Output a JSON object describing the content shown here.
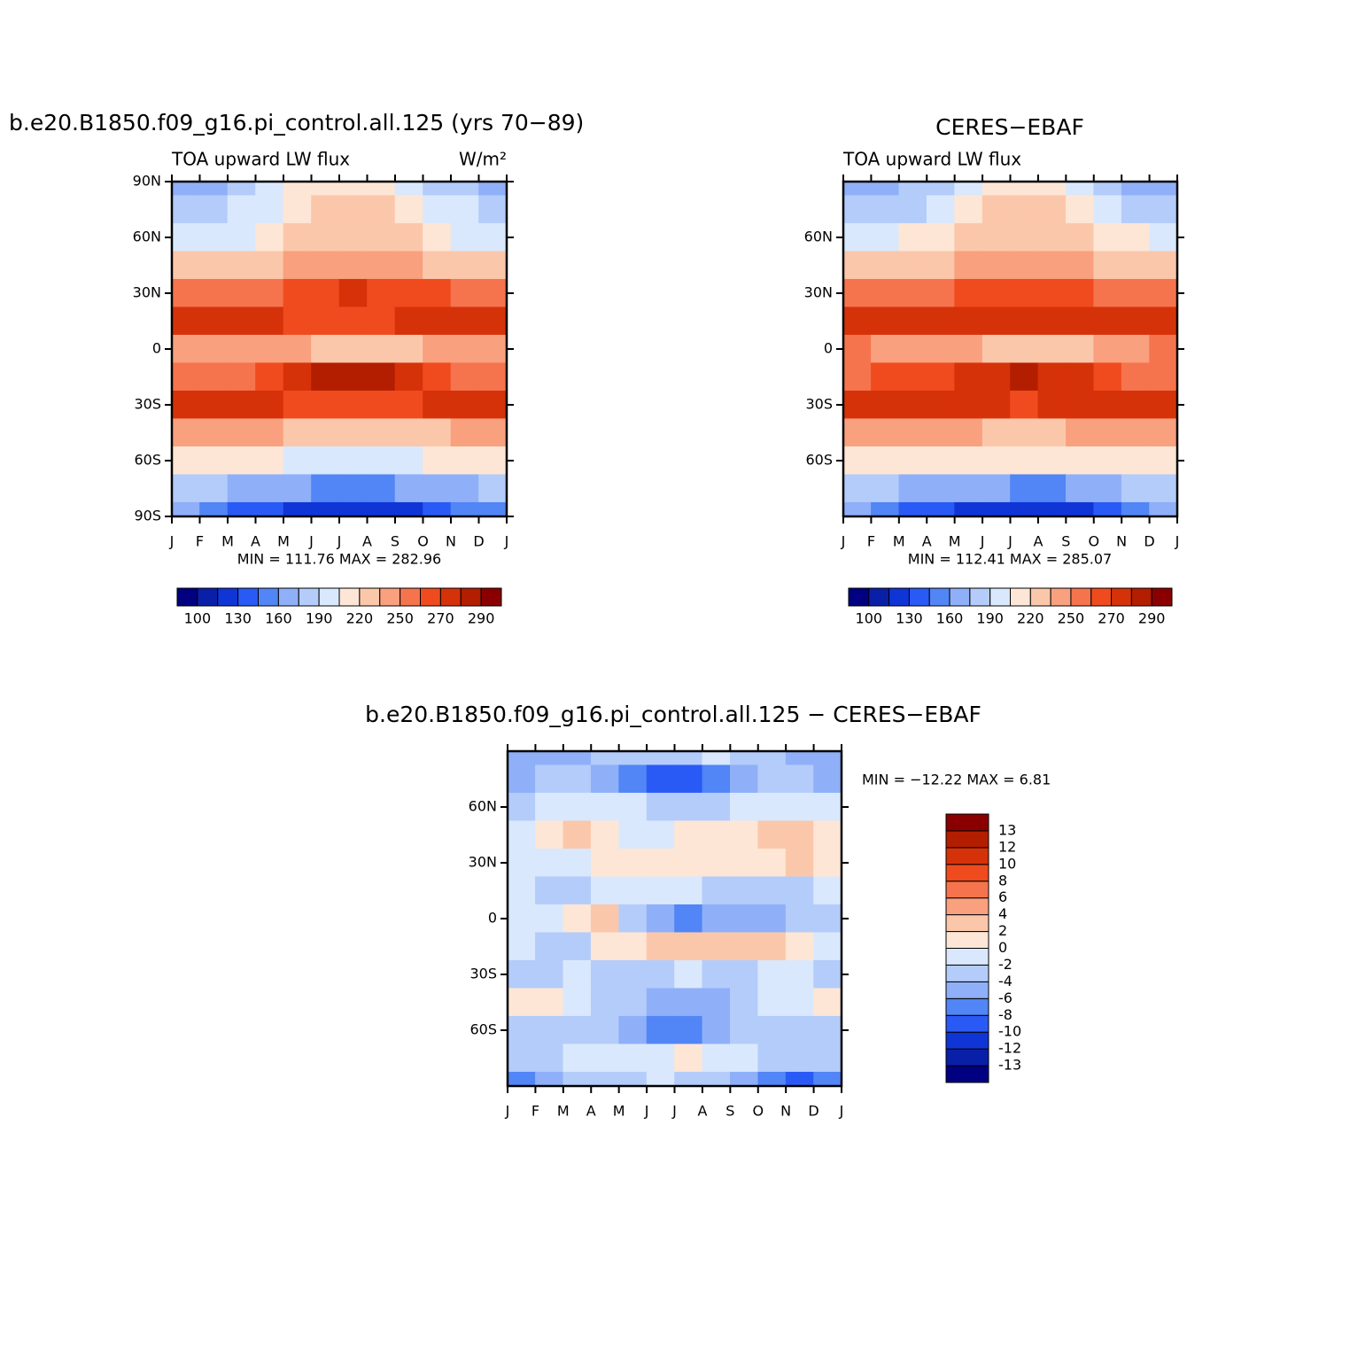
{
  "chart_data": [
    {
      "type": "contour",
      "title": "b.e20.B1850.f09_g16.pi_control.all.125 (yrs 70−89)",
      "subtitle_left": "TOA upward LW flux",
      "subtitle_right": "W/m²",
      "stats": "MIN = 111.76 MAX = 282.96",
      "x": [
        0.5,
        1.5,
        2.5,
        3.5,
        4.5,
        5.5,
        6.5,
        7.5,
        8.5,
        9.5,
        10.5,
        11.5
      ],
      "y": [
        90,
        75,
        60,
        45,
        30,
        15,
        0,
        -15,
        -30,
        -45,
        -60,
        -75,
        -90
      ],
      "values": [
        [
          170,
          172,
          178,
          190,
          205,
          215,
          218,
          212,
          200,
          188,
          175,
          170
        ],
        [
          185,
          186,
          190,
          200,
          212,
          222,
          225,
          220,
          210,
          198,
          190,
          186
        ],
        [
          200,
          200,
          202,
          210,
          220,
          228,
          230,
          228,
          220,
          210,
          204,
          200
        ],
        [
          222,
          222,
          224,
          230,
          238,
          244,
          246,
          244,
          238,
          232,
          226,
          222
        ],
        [
          252,
          252,
          254,
          258,
          264,
          268,
          270,
          268,
          264,
          260,
          256,
          252
        ],
        [
          272,
          272,
          270,
          270,
          268,
          268,
          268,
          268,
          270,
          272,
          274,
          272
        ],
        [
          248,
          246,
          242,
          242,
          238,
          222,
          220,
          222,
          228,
          238,
          244,
          248
        ],
        [
          255,
          258,
          258,
          262,
          272,
          280,
          282,
          280,
          272,
          264,
          258,
          256
        ],
        [
          272,
          272,
          272,
          270,
          268,
          268,
          268,
          268,
          268,
          270,
          272,
          272
        ],
        [
          240,
          240,
          238,
          236,
          232,
          230,
          230,
          230,
          232,
          234,
          238,
          240
        ],
        [
          215,
          214,
          212,
          208,
          204,
          202,
          202,
          202,
          204,
          208,
          212,
          215
        ],
        [
          180,
          176,
          170,
          165,
          160,
          158,
          158,
          158,
          160,
          166,
          172,
          178
        ],
        [
          160,
          150,
          140,
          130,
          125,
          120,
          120,
          120,
          125,
          135,
          145,
          155
        ]
      ],
      "xlim": [
        0,
        12
      ],
      "ylim": [
        -90,
        90
      ],
      "xticks": [
        {
          "value": 0,
          "label": "J"
        },
        {
          "value": 1,
          "label": "F"
        },
        {
          "value": 2,
          "label": "M"
        },
        {
          "value": 3,
          "label": "A"
        },
        {
          "value": 4,
          "label": "M"
        },
        {
          "value": 5,
          "label": "J"
        },
        {
          "value": 6,
          "label": "J"
        },
        {
          "value": 7,
          "label": "A"
        },
        {
          "value": 8,
          "label": "S"
        },
        {
          "value": 9,
          "label": "O"
        },
        {
          "value": 10,
          "label": "N"
        },
        {
          "value": 11,
          "label": "D"
        },
        {
          "value": 12,
          "label": "J"
        }
      ],
      "yticks": [
        {
          "value": 90,
          "label": "90N"
        },
        {
          "value": 60,
          "label": "60N"
        },
        {
          "value": 30,
          "label": "30N"
        },
        0,
        {
          "value": -30,
          "label": "30S"
        },
        {
          "value": -60,
          "label": "60S"
        },
        {
          "value": -90,
          "label": "90S"
        }
      ],
      "levels": [
        100,
        115,
        130,
        145,
        160,
        175,
        190,
        205,
        220,
        235,
        250,
        260,
        270,
        280,
        290
      ],
      "colorbar_ticks": [
        100,
        130,
        160,
        190,
        220,
        250,
        270,
        290
      ],
      "colorbar": "bottom",
      "colors": [
        "#000080",
        "#0a1fa8",
        "#1035d6",
        "#2a5af5",
        "#5285f5",
        "#8fb0f8",
        "#b4ccfa",
        "#d9e8fc",
        "#fde6d5",
        "#fbc7ab",
        "#f9a07e",
        "#f5744e",
        "#f04b1e",
        "#d6320a",
        "#b31e00",
        "#8a0000"
      ]
    },
    {
      "type": "contour",
      "title": "CERES−EBAF",
      "subtitle_left": "TOA upward LW flux",
      "stats": "MIN = 112.41 MAX = 285.07",
      "x": [
        0.5,
        1.5,
        2.5,
        3.5,
        4.5,
        5.5,
        6.5,
        7.5,
        8.5,
        9.5,
        10.5,
        11.5
      ],
      "y": [
        90,
        75,
        60,
        45,
        30,
        15,
        0,
        -15,
        -30,
        -45,
        -60,
        -75,
        -90
      ],
      "values": [
        [
          168,
          170,
          176,
          188,
          203,
          214,
          217,
          211,
          198,
          186,
          174,
          168
        ],
        [
          182,
          184,
          188,
          200,
          212,
          224,
          228,
          222,
          210,
          197,
          188,
          183
        ],
        [
          202,
          203,
          205,
          212,
          222,
          232,
          234,
          230,
          222,
          212,
          206,
          202
        ],
        [
          224,
          222,
          222,
          228,
          238,
          246,
          248,
          246,
          238,
          231,
          224,
          223
        ],
        [
          254,
          253,
          255,
          257,
          263,
          268,
          269,
          268,
          263,
          258,
          254,
          252
        ],
        [
          276,
          274,
          273,
          272,
          270,
          270,
          270,
          271,
          273,
          275,
          277,
          276
        ],
        [
          250,
          248,
          242,
          240,
          236,
          226,
          226,
          228,
          232,
          240,
          248,
          250
        ],
        [
          256,
          260,
          260,
          262,
          270,
          278,
          282,
          279,
          271,
          262,
          258,
          256
        ],
        [
          274,
          274,
          273,
          272,
          270,
          270,
          269,
          270,
          270,
          272,
          274,
          274
        ],
        [
          240,
          240,
          239,
          238,
          235,
          234,
          234,
          234,
          235,
          236,
          239,
          240
        ],
        [
          218,
          216,
          214,
          210,
          207,
          205,
          205,
          205,
          206,
          210,
          214,
          217
        ],
        [
          184,
          180,
          174,
          168,
          163,
          160,
          158,
          159,
          162,
          168,
          176,
          182
        ],
        [
          165,
          155,
          143,
          133,
          128,
          123,
          122,
          123,
          128,
          140,
          152,
          160
        ]
      ],
      "xlim": [
        0,
        12
      ],
      "ylim": [
        -90,
        90
      ],
      "xticks": [
        {
          "value": 0,
          "label": "J"
        },
        {
          "value": 1,
          "label": "F"
        },
        {
          "value": 2,
          "label": "M"
        },
        {
          "value": 3,
          "label": "A"
        },
        {
          "value": 4,
          "label": "M"
        },
        {
          "value": 5,
          "label": "J"
        },
        {
          "value": 6,
          "label": "J"
        },
        {
          "value": 7,
          "label": "A"
        },
        {
          "value": 8,
          "label": "S"
        },
        {
          "value": 9,
          "label": "O"
        },
        {
          "value": 10,
          "label": "N"
        },
        {
          "value": 11,
          "label": "D"
        },
        {
          "value": 12,
          "label": "J"
        }
      ],
      "yticks": [
        {
          "value": 60,
          "label": "60N"
        },
        {
          "value": 30,
          "label": "30N"
        },
        0,
        {
          "value": -30,
          "label": "30S"
        },
        {
          "value": -60,
          "label": "60S"
        }
      ],
      "levels": [
        100,
        115,
        130,
        145,
        160,
        175,
        190,
        205,
        220,
        235,
        250,
        260,
        270,
        280,
        290
      ],
      "colorbar_ticks": [
        100,
        130,
        160,
        190,
        220,
        250,
        270,
        290
      ],
      "colorbar": "bottom",
      "colors": [
        "#000080",
        "#0a1fa8",
        "#1035d6",
        "#2a5af5",
        "#5285f5",
        "#8fb0f8",
        "#b4ccfa",
        "#d9e8fc",
        "#fde6d5",
        "#fbc7ab",
        "#f9a07e",
        "#f5744e",
        "#f04b1e",
        "#d6320a",
        "#b31e00",
        "#8a0000"
      ]
    },
    {
      "type": "contour",
      "title": "b.e20.B1850.f09_g16.pi_control.all.125 − CERES−EBAF",
      "stats": "MIN = −12.22 MAX =    6.81",
      "x": [
        0.5,
        1.5,
        2.5,
        3.5,
        4.5,
        5.5,
        6.5,
        7.5,
        8.5,
        9.5,
        10.5,
        11.5
      ],
      "y": [
        90,
        75,
        60,
        45,
        30,
        15,
        0,
        -15,
        -30,
        -45,
        -60,
        -75,
        -90
      ],
      "values": [
        [
          -6,
          -6,
          -5,
          -4,
          -4,
          -4,
          -3,
          -2,
          -3,
          -4,
          -5,
          -6
        ],
        [
          -5,
          -4,
          -4,
          -5,
          -7,
          -9,
          -10,
          -8,
          -5,
          -3,
          -4,
          -5
        ],
        [
          -3,
          -2,
          -2,
          -2,
          -2,
          -3,
          -3,
          -3,
          -2,
          -1,
          -1,
          -2
        ],
        [
          -1,
          1,
          2,
          1,
          -1,
          -1,
          1,
          1,
          1,
          2,
          3,
          1
        ],
        [
          -2,
          -1,
          -1,
          1,
          1,
          1,
          1,
          1,
          1,
          1,
          2,
          1
        ],
        [
          -2,
          -3,
          -3,
          -2,
          -2,
          -2,
          -1,
          -3,
          -4,
          -4,
          -3,
          -2
        ],
        [
          -2,
          -1,
          1,
          2,
          -3,
          -5,
          -7,
          -6,
          -5,
          -5,
          -4,
          -3
        ],
        [
          -2,
          -3,
          -3,
          1,
          1,
          2,
          2,
          2,
          2,
          3,
          1,
          -2
        ],
        [
          -3,
          -3,
          -2,
          -3,
          -3,
          -3,
          -2,
          -3,
          -3,
          -2,
          -2,
          -3
        ],
        [
          1,
          1,
          -1,
          -3,
          -4,
          -6,
          -5,
          -5,
          -3,
          -2,
          -1,
          1
        ],
        [
          -3,
          -4,
          -3,
          -3,
          -5,
          -8,
          -8,
          -5,
          -3,
          -3,
          -3,
          -3
        ],
        [
          -3,
          -3,
          -2,
          -2,
          -2,
          -1,
          1,
          -1,
          -2,
          -3,
          -4,
          -4
        ],
        [
          -7,
          -5,
          -3,
          -3,
          -3,
          -2,
          -3,
          -3,
          -5,
          -8,
          -9,
          -8
        ]
      ],
      "xlim": [
        0,
        12
      ],
      "ylim": [
        -90,
        90
      ],
      "xticks": [
        {
          "value": 0,
          "label": "J"
        },
        {
          "value": 1,
          "label": "F"
        },
        {
          "value": 2,
          "label": "M"
        },
        {
          "value": 3,
          "label": "A"
        },
        {
          "value": 4,
          "label": "M"
        },
        {
          "value": 5,
          "label": "J"
        },
        {
          "value": 6,
          "label": "J"
        },
        {
          "value": 7,
          "label": "A"
        },
        {
          "value": 8,
          "label": "S"
        },
        {
          "value": 9,
          "label": "O"
        },
        {
          "value": 10,
          "label": "N"
        },
        {
          "value": 11,
          "label": "D"
        },
        {
          "value": 12,
          "label": "J"
        }
      ],
      "yticks": [
        {
          "value": 60,
          "label": "60N"
        },
        {
          "value": 30,
          "label": "30N"
        },
        0,
        {
          "value": -30,
          "label": "30S"
        },
        {
          "value": -60,
          "label": "60S"
        }
      ],
      "levels": [
        -13,
        -12,
        -10,
        -8,
        -6,
        -4,
        -2,
        0,
        2,
        4,
        6,
        8,
        10,
        12,
        13
      ],
      "colorbar_ticks": [
        -13,
        -12,
        -10,
        -8,
        -6,
        -4,
        -2,
        0,
        2,
        4,
        6,
        8,
        10,
        12,
        13
      ],
      "colorbar": "right",
      "colors": [
        "#000080",
        "#0a1fa8",
        "#1035d6",
        "#2a5af5",
        "#5285f5",
        "#8fb0f8",
        "#b4ccfa",
        "#d9e8fc",
        "#fde6d5",
        "#fbc7ab",
        "#f9a07e",
        "#f5744e",
        "#f04b1e",
        "#d6320a",
        "#b31e00",
        "#8a0000"
      ]
    }
  ]
}
